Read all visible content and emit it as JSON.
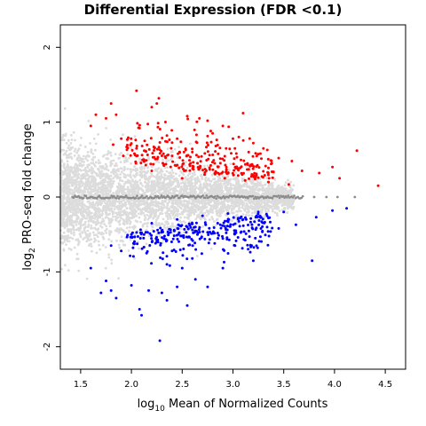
{
  "chart_data": {
    "type": "scatter",
    "title": "Differential Expression (FDR <0.1)",
    "xlabel": {
      "prefix": "log",
      "sub": "10",
      "rest": " Mean of Normalized Counts"
    },
    "ylabel": {
      "prefix": "log",
      "sub": "2",
      "rest": " PRO-seq fold change"
    },
    "xlim": [
      1.3,
      4.7
    ],
    "ylim": [
      -2.3,
      2.3
    ],
    "xticks": [
      "1.5",
      "2.0",
      "2.5",
      "3.0",
      "3.5",
      "4.0",
      "4.5"
    ],
    "yticks": [
      "-2",
      "-1",
      "0",
      "1",
      "2"
    ],
    "grid": false,
    "legend": "none",
    "colors": {
      "not_significant": "#dcdcdc",
      "near_zero": "#8c8c8c",
      "up": "#ff0000",
      "down": "#0000ff"
    },
    "series": [
      {
        "name": "up",
        "color": "#ff0000",
        "points": [
          [
            1.8,
            1.25
          ],
          [
            1.85,
            1.1
          ],
          [
            2.05,
            1.42
          ],
          [
            2.2,
            1.2
          ],
          [
            2.27,
            1.32
          ],
          [
            2.25,
            1.25
          ],
          [
            1.65,
            1.1
          ],
          [
            1.6,
            0.95
          ],
          [
            1.75,
            1.05
          ],
          [
            1.82,
            0.7
          ],
          [
            1.9,
            0.78
          ],
          [
            2.08,
            0.92
          ],
          [
            2.13,
            0.75
          ],
          [
            2.05,
            0.65
          ],
          [
            2.22,
            0.67
          ],
          [
            2.35,
            0.82
          ],
          [
            2.45,
            0.78
          ],
          [
            2.55,
            1.08
          ],
          [
            2.67,
            1.05
          ],
          [
            2.75,
            1.02
          ],
          [
            2.8,
            0.85
          ],
          [
            2.9,
            0.95
          ],
          [
            3.1,
            1.12
          ],
          [
            3.0,
            0.78
          ],
          [
            3.2,
            0.72
          ],
          [
            3.27,
            0.58
          ],
          [
            3.3,
            0.65
          ],
          [
            3.45,
            0.52
          ],
          [
            3.58,
            0.48
          ],
          [
            3.68,
            0.35
          ],
          [
            3.85,
            0.32
          ],
          [
            3.98,
            0.4
          ],
          [
            4.05,
            0.25
          ],
          [
            4.22,
            0.62
          ],
          [
            4.43,
            0.15
          ],
          [
            1.92,
            0.55
          ],
          [
            2.12,
            0.5
          ],
          [
            2.32,
            0.42
          ],
          [
            2.52,
            0.35
          ],
          [
            2.72,
            0.3
          ],
          [
            2.92,
            0.25
          ],
          [
            3.12,
            0.22
          ],
          [
            3.35,
            0.2
          ],
          [
            3.55,
            0.17
          ],
          [
            2.6,
            0.6
          ],
          [
            2.82,
            0.45
          ],
          [
            2.4,
            0.55
          ],
          [
            3.05,
            0.38
          ],
          [
            2.2,
            0.35
          ],
          [
            2.5,
            0.25
          ]
        ]
      },
      {
        "name": "down",
        "color": "#0000ff",
        "points": [
          [
            1.6,
            -0.95
          ],
          [
            1.75,
            -1.12
          ],
          [
            1.7,
            -1.28
          ],
          [
            1.8,
            -1.25
          ],
          [
            1.85,
            -1.35
          ],
          [
            2.0,
            -1.18
          ],
          [
            2.08,
            -1.5
          ],
          [
            2.1,
            -1.58
          ],
          [
            2.17,
            -1.25
          ],
          [
            2.28,
            -1.92
          ],
          [
            2.3,
            -1.28
          ],
          [
            2.35,
            -1.38
          ],
          [
            2.45,
            -1.2
          ],
          [
            2.55,
            -1.45
          ],
          [
            2.63,
            -1.1
          ],
          [
            2.75,
            -1.2
          ],
          [
            2.9,
            -0.95
          ],
          [
            3.2,
            -0.85
          ],
          [
            3.78,
            -0.85
          ],
          [
            1.8,
            -0.65
          ],
          [
            1.9,
            -0.72
          ],
          [
            2.02,
            -0.62
          ],
          [
            2.12,
            -0.55
          ],
          [
            2.25,
            -0.6
          ],
          [
            2.4,
            -0.72
          ],
          [
            2.6,
            -0.82
          ],
          [
            2.82,
            -0.62
          ],
          [
            3.02,
            -0.65
          ],
          [
            3.22,
            -0.55
          ],
          [
            3.45,
            -0.42
          ],
          [
            3.62,
            -0.37
          ],
          [
            3.82,
            -0.27
          ],
          [
            3.98,
            -0.18
          ],
          [
            4.12,
            -0.15
          ],
          [
            2.2,
            -0.35
          ],
          [
            2.45,
            -0.3
          ],
          [
            2.7,
            -0.25
          ],
          [
            2.95,
            -0.22
          ],
          [
            3.25,
            -0.2
          ],
          [
            3.5,
            -0.2
          ],
          [
            2.3,
            -0.45
          ],
          [
            2.55,
            -0.4
          ],
          [
            2.85,
            -0.35
          ],
          [
            3.1,
            -0.3
          ],
          [
            3.35,
            -0.28
          ],
          [
            2.0,
            -0.5
          ],
          [
            2.65,
            -0.5
          ],
          [
            2.35,
            -0.9
          ],
          [
            2.15,
            -0.75
          ],
          [
            2.5,
            -0.95
          ]
        ]
      }
    ]
  }
}
